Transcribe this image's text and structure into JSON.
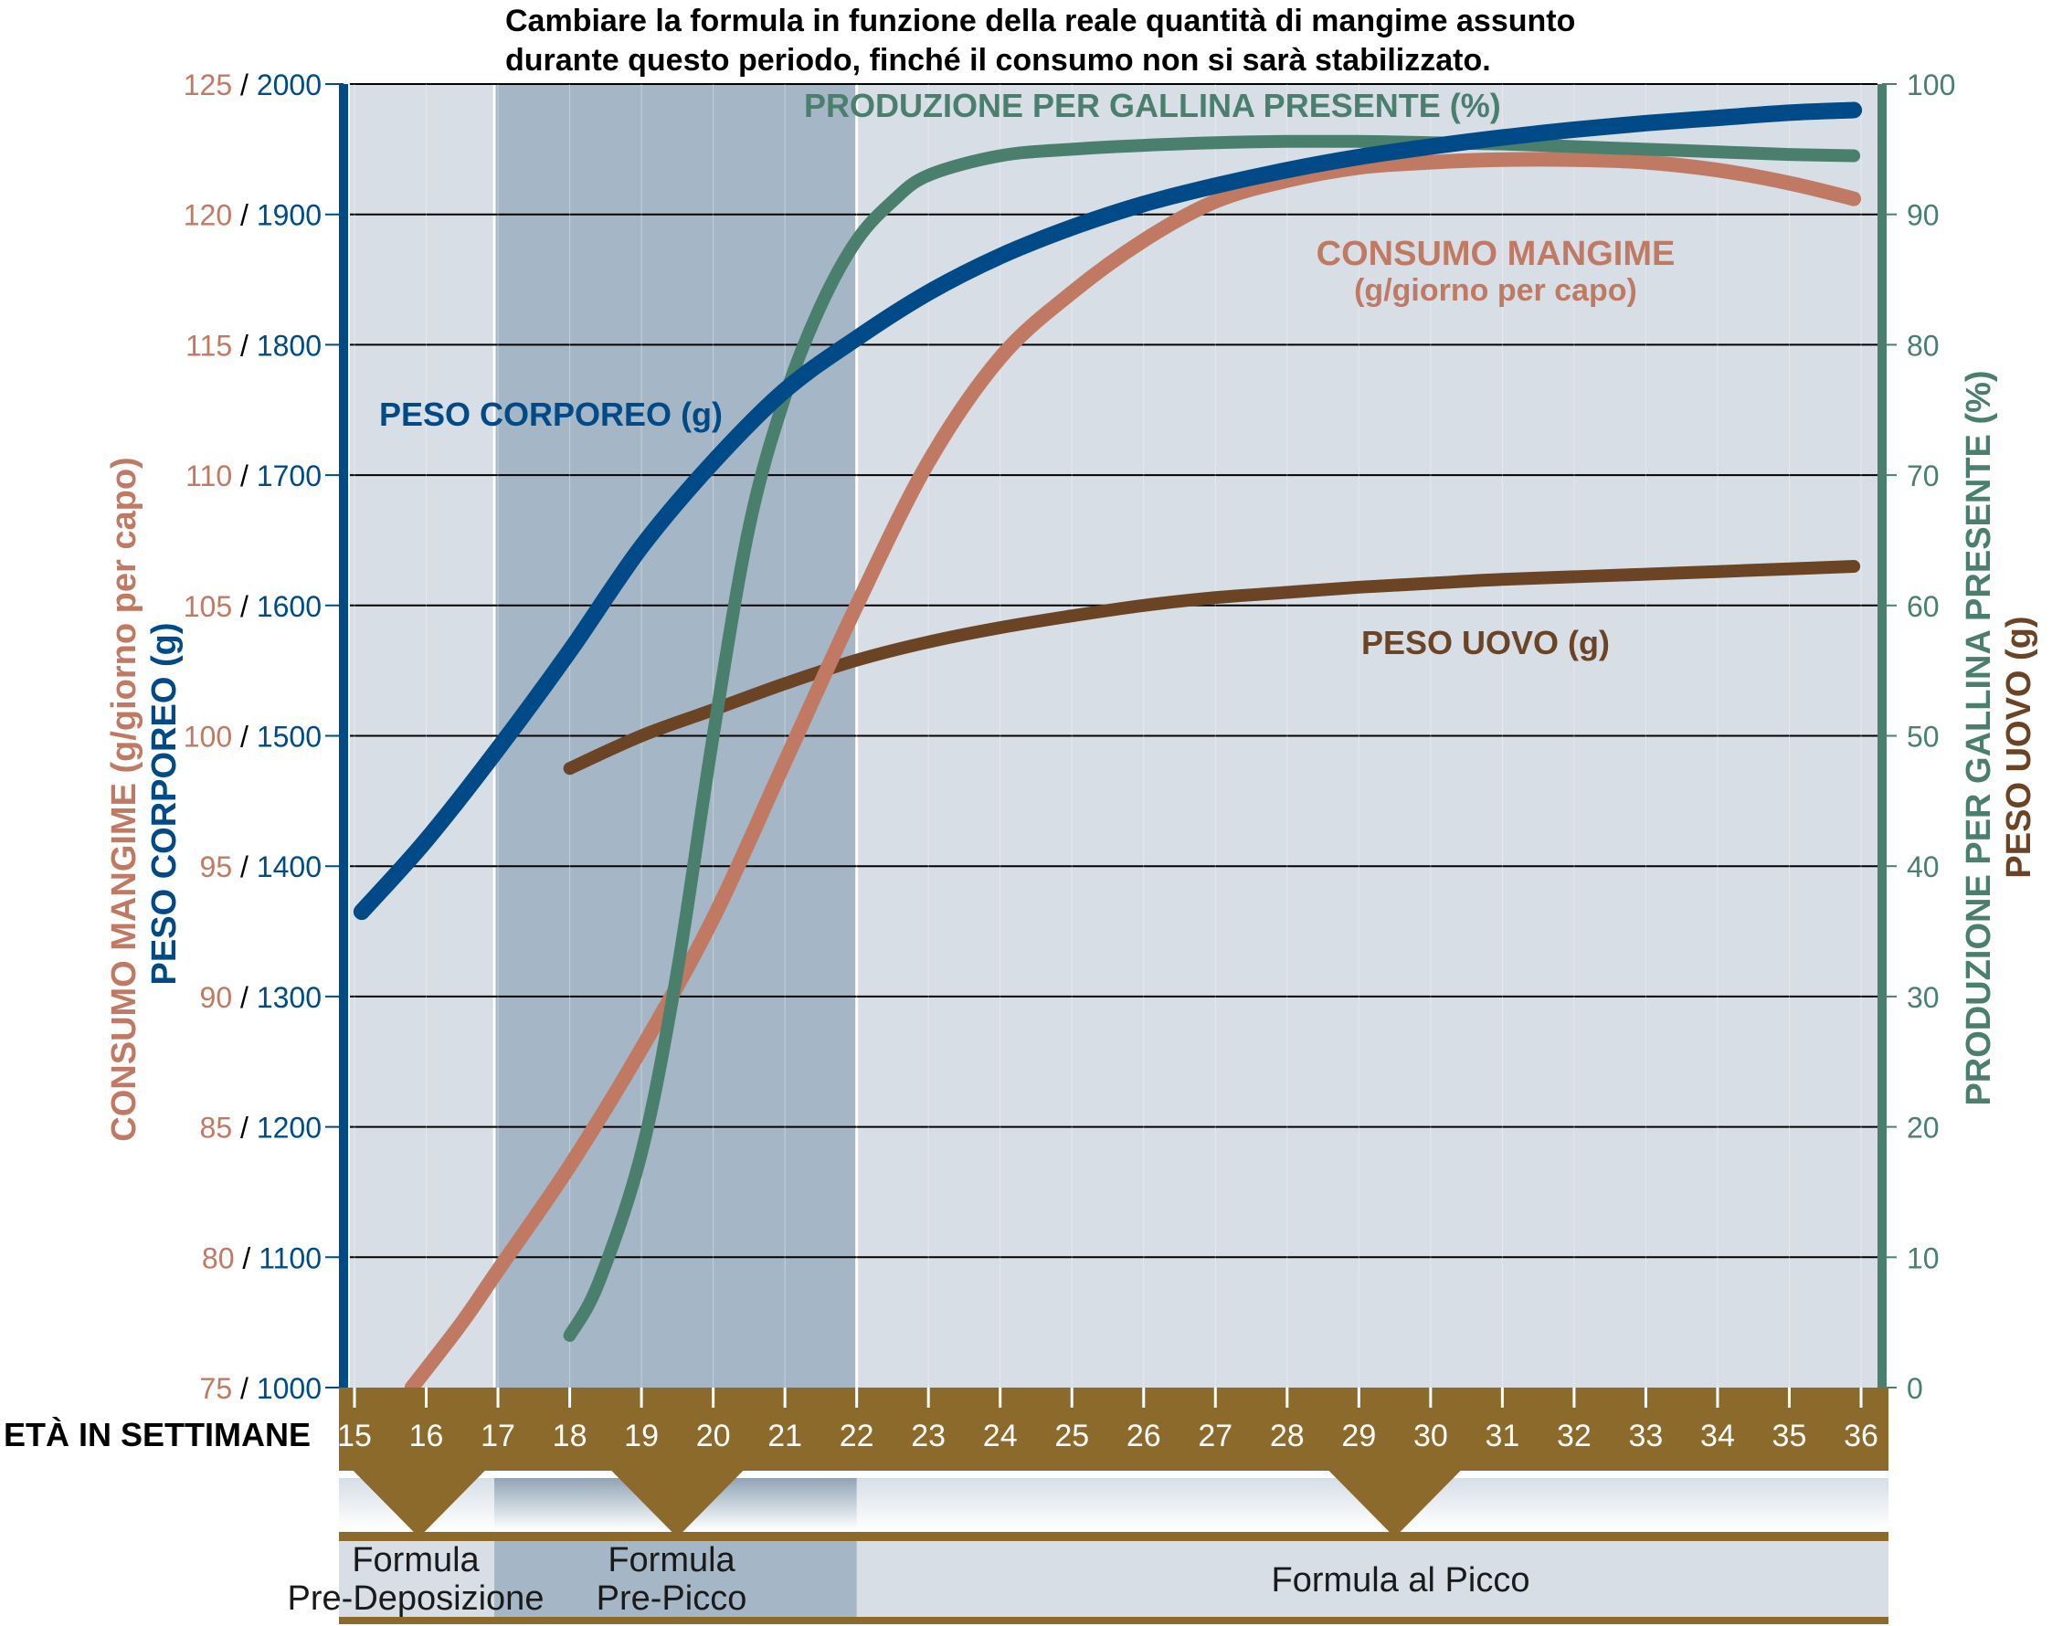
{
  "note": {
    "line1": "Cambiare la formula in funzione della reale quantità di mangime assunto",
    "line2": "durante questo periodo, finché il consumo non si sarà stabilizzato."
  },
  "colors": {
    "body_weight": "#004a87",
    "feed_intake": "#c07a63",
    "production": "#4a7f6e",
    "egg_weight": "#6b4426",
    "bar": "#8b6a2b",
    "bg_light": "#d7dee6",
    "bg_dark": "#a5b7c6",
    "grid": "#000000",
    "title_text": "#000000"
  },
  "chart_data": {
    "type": "line",
    "x_label": "ETÀ IN SETTIMANE",
    "x_ticks": [
      15,
      16,
      17,
      18,
      19,
      20,
      21,
      22,
      23,
      24,
      25,
      26,
      27,
      28,
      29,
      30,
      31,
      32,
      33,
      34,
      35,
      36
    ],
    "x_range": [
      15,
      36
    ],
    "left_axis": {
      "label_feed": "CONSUMO MANGIME (g/giorno per capo)",
      "label_weight": "PESO CORPOREO (g)",
      "ticks_feed": [
        75,
        80,
        85,
        90,
        95,
        100,
        105,
        110,
        115,
        120,
        125
      ],
      "ticks_weight": [
        1000,
        1100,
        1200,
        1300,
        1400,
        1500,
        1600,
        1700,
        1800,
        1900,
        2000
      ],
      "feed_range": [
        75,
        125
      ],
      "weight_range": [
        1000,
        2000
      ]
    },
    "right_axis": {
      "label_production": "PRODUZIONE PER GALLINA PRESENTE (%)",
      "label_egg": "PESO UOVO (g)",
      "ticks": [
        0,
        10,
        20,
        30,
        40,
        50,
        60,
        70,
        80,
        90,
        100
      ],
      "range": [
        0,
        100
      ]
    },
    "series": [
      {
        "name": "PESO CORPOREO (g)",
        "axis": "weight",
        "color_key": "body_weight",
        "x": [
          15.1,
          16,
          17,
          18,
          19,
          20,
          21,
          22,
          23,
          24,
          25,
          26,
          27,
          28,
          29,
          30,
          31,
          32,
          33,
          34,
          35,
          35.9
        ],
        "y": [
          1365,
          1420,
          1490,
          1565,
          1645,
          1710,
          1765,
          1805,
          1840,
          1868,
          1890,
          1908,
          1922,
          1934,
          1944,
          1952,
          1959,
          1965,
          1970,
          1974,
          1978,
          1980
        ]
      },
      {
        "name": "CONSUMO MANGIME",
        "axis": "feed",
        "color_key": "feed_intake",
        "x": [
          15.8,
          16.5,
          17,
          18,
          19,
          20,
          21,
          22,
          23,
          24,
          25,
          26,
          27,
          28,
          29,
          30,
          31,
          32,
          33,
          34,
          35,
          35.9
        ],
        "y": [
          75,
          77.5,
          79.5,
          83.5,
          88,
          93,
          99,
          105,
          110.5,
          114.5,
          117,
          119,
          120.5,
          121.3,
          121.8,
          122,
          122.1,
          122.1,
          122,
          121.7,
          121.2,
          120.6
        ]
      },
      {
        "name": "PRODUZIONE PER GALLINA PRESENTE (%)",
        "axis": "right",
        "color_key": "production",
        "x": [
          18,
          18.4,
          19,
          19.5,
          20,
          20.5,
          21,
          21.5,
          22,
          22.5,
          23,
          24,
          25,
          26,
          27,
          28,
          29,
          30,
          31,
          32,
          33,
          34,
          35,
          35.9
        ],
        "y": [
          4,
          8,
          18,
          32,
          50,
          66,
          76,
          83,
          88,
          91,
          93,
          94.5,
          95,
          95.3,
          95.5,
          95.6,
          95.6,
          95.5,
          95.4,
          95.2,
          95,
          94.8,
          94.6,
          94.5
        ]
      },
      {
        "name": "PESO UOVO (g)",
        "axis": "egg_weight",
        "color_key": "egg_weight",
        "x": [
          18,
          19,
          20,
          21,
          22,
          23,
          24,
          25,
          26,
          27,
          28,
          29,
          30,
          31,
          32,
          33,
          34,
          35,
          35.9
        ],
        "y": [
          47.5,
          50,
          52,
          54,
          55.8,
          57.2,
          58.3,
          59.2,
          60,
          60.6,
          61,
          61.4,
          61.7,
          62,
          62.2,
          62.4,
          62.6,
          62.8,
          63
        ]
      }
    ],
    "labels": {
      "body_weight": "PESO CORPOREO (g)",
      "feed_intake_1": "CONSUMO MANGIME",
      "feed_intake_2": "(g/giorno per capo)",
      "production": "PRODUZIONE PER GALLINA PRESENTE (%)",
      "egg_weight": "PESO UOVO (g)"
    },
    "phases": [
      {
        "line1": "Formula",
        "line2": "Pre-Deposizione",
        "from": 15,
        "to": 17
      },
      {
        "line1": "Formula",
        "line2": "Pre-Picco",
        "from": 17,
        "to": 22
      },
      {
        "line1": "",
        "line2": "Formula al Picco",
        "from": 22,
        "to": 36
      }
    ],
    "arrows_at": [
      15.9,
      19.5,
      29.5
    ],
    "grid": true
  }
}
